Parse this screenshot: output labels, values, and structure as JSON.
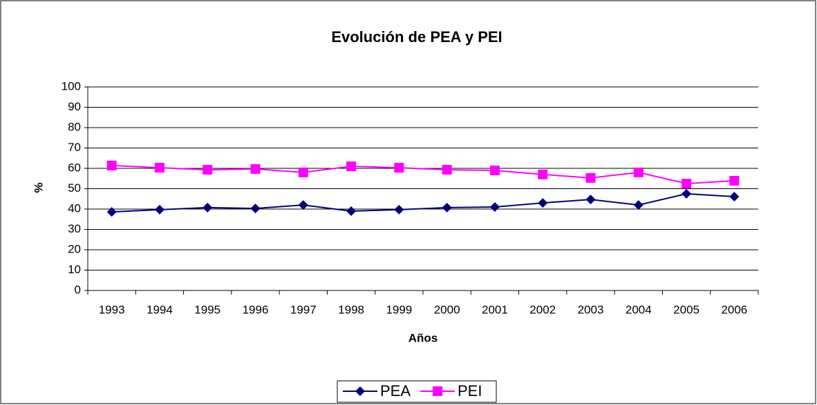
{
  "chart_data": {
    "type": "line",
    "title": "Evolución de PEA y PEI",
    "x_label": "Años",
    "y_label": "%",
    "categories": [
      "1993",
      "1994",
      "1995",
      "1996",
      "1997",
      "1998",
      "1999",
      "2000",
      "2001",
      "2002",
      "2003",
      "2004",
      "2005",
      "2006"
    ],
    "series": [
      {
        "name": "PEA",
        "color": "#000080",
        "marker": "diamond",
        "values": [
          38.6,
          39.7,
          40.7,
          40.3,
          42,
          39,
          39.7,
          40.7,
          41,
          43,
          44.7,
          42,
          47.5,
          46.1
        ]
      },
      {
        "name": "PEI",
        "color": "#ff00ff",
        "marker": "square",
        "values": [
          61.4,
          60.3,
          59.3,
          59.7,
          58,
          61,
          60.3,
          59.3,
          59,
          57,
          55.3,
          58,
          52.5,
          53.9
        ]
      }
    ],
    "ylim": [
      0,
      100
    ],
    "yticks": [
      0,
      10,
      20,
      30,
      40,
      50,
      60,
      70,
      80,
      90,
      100
    ],
    "grid": true,
    "legend": "bottom"
  }
}
